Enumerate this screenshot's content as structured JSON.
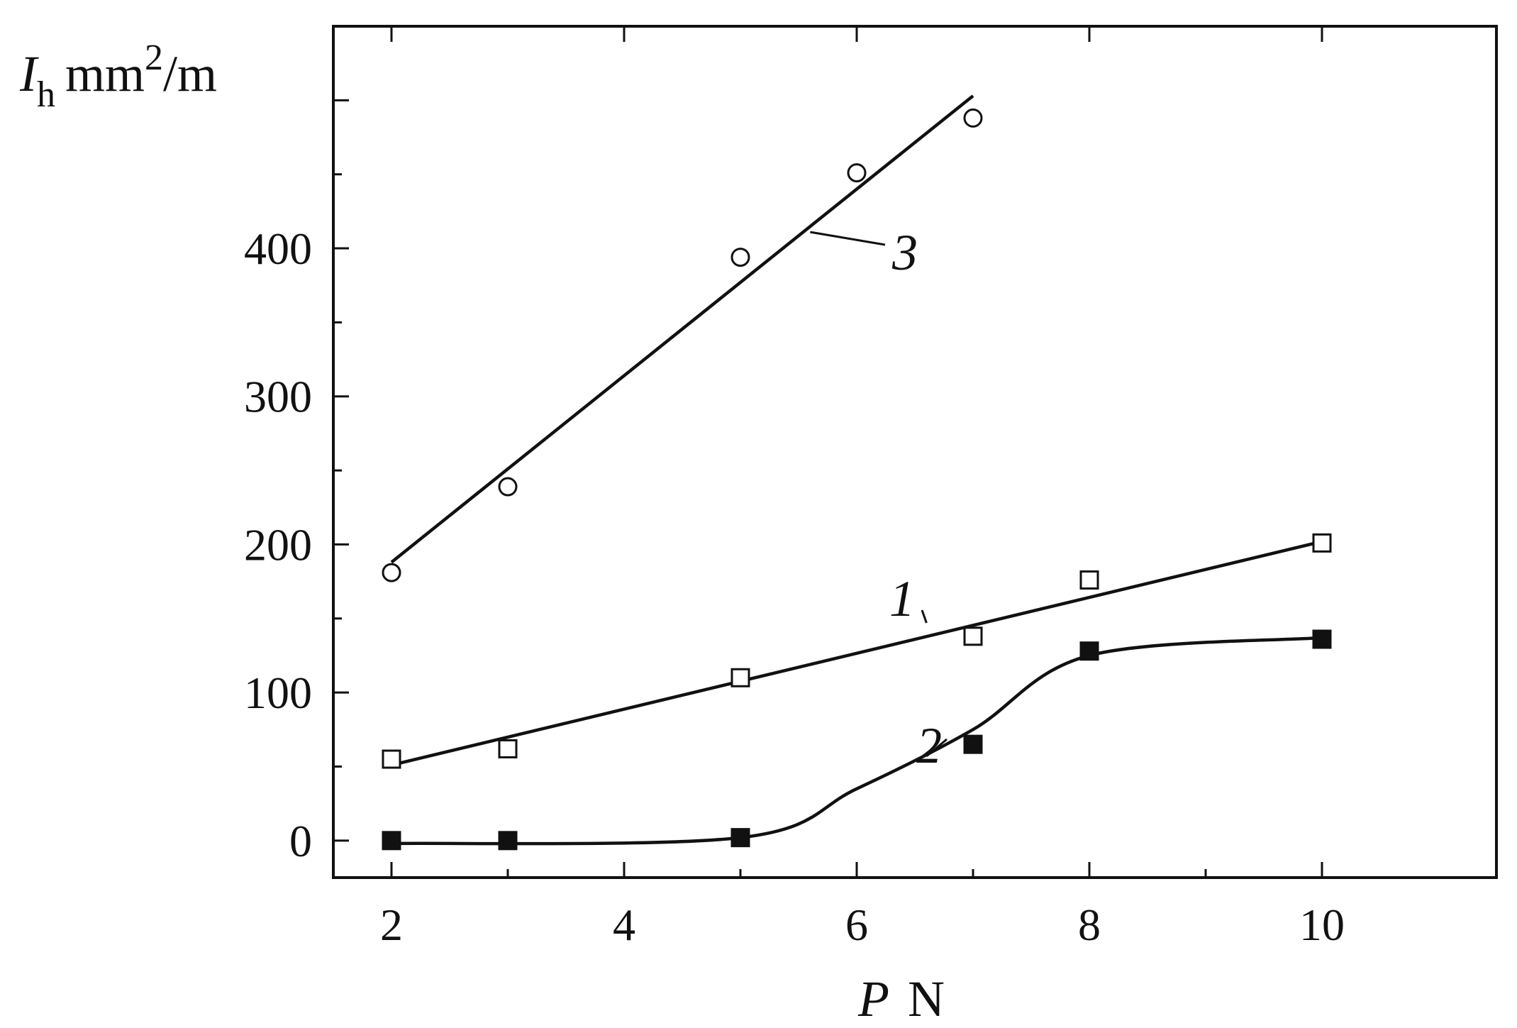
{
  "chart_data": {
    "type": "scatter",
    "xlabel": {
      "symbol": "P",
      "unit": "N"
    },
    "ylabel": {
      "symbol": "I",
      "subscript": "h",
      "unit": "mm",
      "unit_power": "2",
      "unit_tail": "/m"
    },
    "xlim": [
      1.5,
      11.5
    ],
    "ylim": [
      -25,
      550
    ],
    "xticks": [
      2,
      4,
      6,
      8,
      10
    ],
    "yticks": [
      0,
      100,
      200,
      300,
      400
    ],
    "grid": false,
    "legend": "none",
    "series": [
      {
        "name": "1",
        "marker": "open-square",
        "x": [
          2,
          3,
          5,
          7,
          8,
          10
        ],
        "y": [
          55,
          62,
          110,
          138,
          176,
          201
        ],
        "fit": {
          "kind": "linear",
          "x": [
            2,
            10
          ],
          "y": [
            51,
            202
          ]
        }
      },
      {
        "name": "2",
        "marker": "filled-square",
        "x": [
          2,
          3,
          5,
          7,
          8,
          10
        ],
        "y": [
          0,
          0,
          2,
          65,
          128,
          136
        ],
        "fit": {
          "kind": "smooth",
          "x": [
            2,
            5,
            6,
            7,
            8,
            10
          ],
          "y": [
            -2,
            2,
            35,
            75,
            125,
            137
          ]
        }
      },
      {
        "name": "3",
        "marker": "open-circle",
        "x": [
          2,
          3,
          5,
          6,
          7
        ],
        "y": [
          181,
          239,
          394,
          451,
          488
        ],
        "fit": {
          "kind": "linear",
          "x": [
            2,
            7
          ],
          "y": [
            188,
            503
          ]
        }
      }
    ]
  }
}
